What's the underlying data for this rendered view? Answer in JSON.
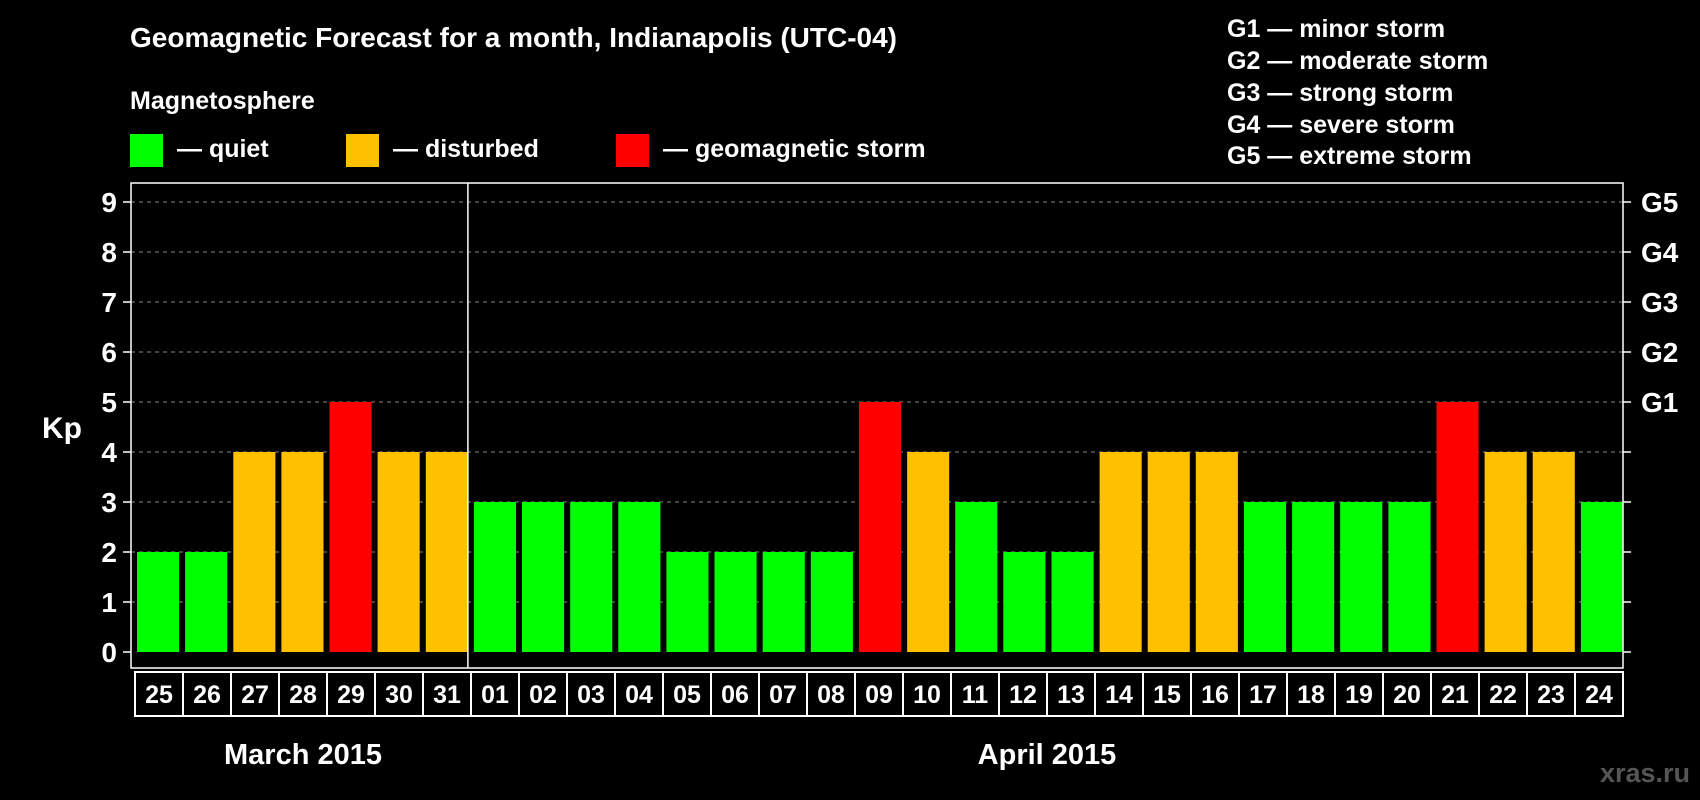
{
  "title": "Geomagnetic Forecast for a month, Indianapolis (UTC-04)",
  "legend": {
    "heading": "Magnetosphere",
    "items": [
      {
        "label": "— quiet",
        "color": "#00ff00"
      },
      {
        "label": "— disturbed",
        "color": "#ffc000"
      },
      {
        "label": "— geomagnetic storm",
        "color": "#ff0000"
      }
    ]
  },
  "storm_scale": [
    "G1 — minor storm",
    "G2 — moderate storm",
    "G3 — strong storm",
    "G4 — severe storm",
    "G5 — extreme storm"
  ],
  "watermark": "xras.ru",
  "colors": {
    "background": "#000000",
    "quiet": "#00ff00",
    "disturbed": "#ffc000",
    "storm": "#ff0000",
    "axis": "#ffffff",
    "grid": "#888888"
  },
  "chart_data": {
    "type": "bar",
    "ylabel": "Kp",
    "ylim": [
      0,
      9
    ],
    "yticks": [
      0,
      1,
      2,
      3,
      4,
      5,
      6,
      7,
      8,
      9
    ],
    "right_axis_labels": [
      {
        "kp": 5,
        "label": "G1"
      },
      {
        "kp": 6,
        "label": "G2"
      },
      {
        "kp": 7,
        "label": "G3"
      },
      {
        "kp": 8,
        "label": "G4"
      },
      {
        "kp": 9,
        "label": "G5"
      }
    ],
    "grid": true,
    "months": [
      {
        "label": "March 2015",
        "days": 7
      },
      {
        "label": "April 2015",
        "days": 24
      }
    ],
    "categories": [
      "25",
      "26",
      "27",
      "28",
      "29",
      "30",
      "31",
      "01",
      "02",
      "03",
      "04",
      "05",
      "06",
      "07",
      "08",
      "09",
      "10",
      "11",
      "12",
      "13",
      "14",
      "15",
      "16",
      "17",
      "18",
      "19",
      "20",
      "21",
      "22",
      "23",
      "24"
    ],
    "values": [
      2,
      2,
      4,
      4,
      5,
      4,
      4,
      3,
      3,
      3,
      3,
      2,
      2,
      2,
      2,
      5,
      4,
      3,
      2,
      2,
      4,
      4,
      4,
      3,
      3,
      3,
      3,
      5,
      4,
      4,
      3
    ],
    "status": [
      "quiet",
      "quiet",
      "disturbed",
      "disturbed",
      "storm",
      "disturbed",
      "disturbed",
      "quiet",
      "quiet",
      "quiet",
      "quiet",
      "quiet",
      "quiet",
      "quiet",
      "quiet",
      "storm",
      "disturbed",
      "quiet",
      "quiet",
      "quiet",
      "disturbed",
      "disturbed",
      "disturbed",
      "quiet",
      "quiet",
      "quiet",
      "quiet",
      "storm",
      "disturbed",
      "disturbed",
      "quiet"
    ]
  }
}
